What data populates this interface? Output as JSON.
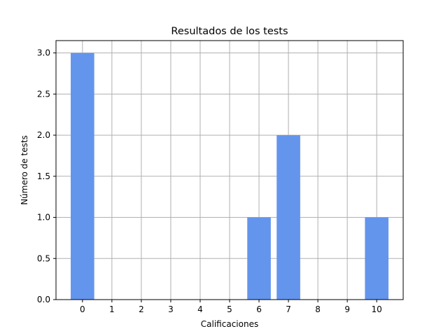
{
  "chart_data": {
    "type": "bar",
    "title": "Resultados de los tests",
    "xlabel": "Calificaciones",
    "ylabel": "Número de tests",
    "categories": [
      "0",
      "1",
      "2",
      "3",
      "4",
      "5",
      "6",
      "7",
      "8",
      "9",
      "10"
    ],
    "x": [
      0,
      1,
      2,
      3,
      4,
      5,
      6,
      7,
      8,
      9,
      10
    ],
    "values": [
      3,
      0,
      0,
      0,
      0,
      0,
      1,
      2,
      0,
      0,
      1
    ],
    "ylim": [
      0,
      3.0
    ],
    "yticks": [
      "0.0",
      "0.5",
      "1.0",
      "1.5",
      "2.0",
      "2.5",
      "3.0"
    ],
    "grid": true,
    "bar_color": "#6495ed",
    "grid_color": "#b0b0b0"
  }
}
